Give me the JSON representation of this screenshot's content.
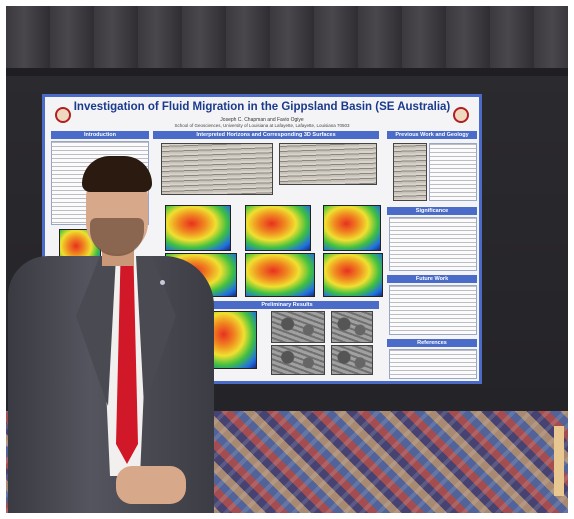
{
  "poster": {
    "title": "Investigation of Fluid Migration in the Gippsland Basin (SE Australia)",
    "authors": "Joseph C. Chapman and Favio Ogiye",
    "affiliation": "School of Geosciences, University of Louisiana at Lafayette, Lafayette, Louisiana 70503",
    "sections": {
      "introduction": "Introduction",
      "interpreted": "Interpreted Horizons and Corresponding 3D Surfaces",
      "results": "Preliminary Results",
      "significance": "Significance",
      "future": "Future Work",
      "references": "References",
      "previous": "Previous Work and Geology"
    },
    "accent_color": "#4a6cc8"
  }
}
